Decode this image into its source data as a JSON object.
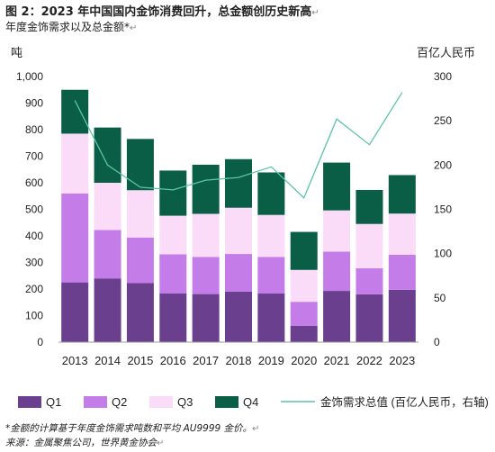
{
  "header": {
    "title": "图 2：2023 年中国国内金饰消费回升，总金额创历史新高",
    "subtitle": "年度金饰需求以及总金额*"
  },
  "footer": {
    "note1": "*金额的计算基于年度金饰需求吨数和平均 AU9999 金价。",
    "note2": "来源：金属聚焦公司，世界黄金协会"
  },
  "chart_data": {
    "type": "bar",
    "stacked": true,
    "categories": [
      "2013",
      "2014",
      "2015",
      "2016",
      "2017",
      "2018",
      "2019",
      "2020",
      "2021",
      "2022",
      "2023"
    ],
    "series": [
      {
        "name": "Q1",
        "color": "#6a3f8e",
        "values": [
          225,
          240,
          222,
          183,
          181,
          190,
          183,
          62,
          193,
          180,
          197
        ]
      },
      {
        "name": "Q2",
        "color": "#c47de8",
        "values": [
          335,
          182,
          172,
          148,
          140,
          142,
          138,
          90,
          148,
          98,
          132
        ]
      },
      {
        "name": "Q3",
        "color": "#fbdcf8",
        "values": [
          225,
          178,
          178,
          145,
          162,
          174,
          158,
          120,
          155,
          167,
          155
        ]
      },
      {
        "name": "Q4",
        "color": "#0b5e46",
        "values": [
          165,
          208,
          193,
          170,
          185,
          183,
          160,
          143,
          180,
          128,
          145
        ]
      }
    ],
    "line": {
      "name": "金饰需求总值 (百亿人民币，右轴)",
      "color": "#5cc4a8",
      "values": [
        273,
        200,
        175,
        172,
        183,
        186,
        198,
        163,
        252,
        223,
        282
      ]
    },
    "ylabel_left": "吨",
    "ylabel_right": "百亿人民币",
    "ylim_left": [
      0,
      1000
    ],
    "ylim_right": [
      0,
      300
    ],
    "yticks_left": [
      "0",
      "100",
      "200",
      "300",
      "400",
      "500",
      "600",
      "700",
      "800",
      "900",
      "1,000"
    ],
    "yticks_right": [
      "0",
      "50",
      "100",
      "150",
      "200",
      "250",
      "300"
    ],
    "legend_position": "bottom"
  }
}
